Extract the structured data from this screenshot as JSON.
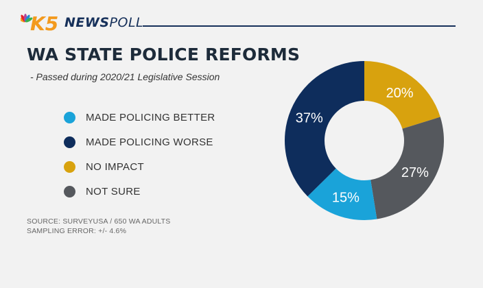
{
  "header": {
    "brand_bold": "NEWS",
    "brand_light": "POLL",
    "logo_mark": "K5",
    "brand_colors": {
      "peacock": [
        "#f6a01a",
        "#e5242b",
        "#b0479b",
        "#1f8bd3",
        "#3db049"
      ],
      "orange": "#f39a1e",
      "navy": "#16305a"
    }
  },
  "chart_data": {
    "type": "pie",
    "title": "WA STATE POLICE REFORMS",
    "subtitle": "- Passed during 2020/21 Legislative Session",
    "donut": true,
    "labels": [
      "MADE POLICING BETTER",
      "MADE POLICING WORSE",
      "NO IMPACT",
      "NOT SURE"
    ],
    "values": [
      15,
      37,
      20,
      27
    ],
    "value_labels": [
      "15%",
      "37%",
      "20%",
      "27%"
    ],
    "colors": [
      "#1aa3d9",
      "#0e2d5c",
      "#d8a20e",
      "#55585d"
    ],
    "legend_position": "left"
  },
  "source": {
    "line1": "SOURCE: SURVEYUSA / 650 WA ADULTS",
    "line2": "SAMPLING ERROR:  +/- 4.6%"
  }
}
